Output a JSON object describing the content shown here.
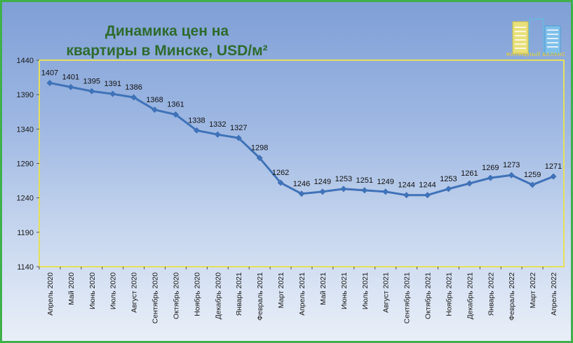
{
  "title": {
    "line1": "Динамика цен на",
    "line2": "квартиры в Минске, USD/м²"
  },
  "logo": {
    "text": "ЖИЛИЩНЫЙ БАЛАНС",
    "icon": "building-logo-icon"
  },
  "colors": {
    "series": "#3f72b8",
    "plot_border": "#e6e05a",
    "title": "#2e6b2e",
    "frame_border": "#3fb04a"
  },
  "chart_data": {
    "type": "line",
    "title": "Динамика цен на квартиры в Минске, USD/м²",
    "xlabel": "",
    "ylabel": "",
    "ylim": [
      1140,
      1440
    ],
    "yticks": [
      1140,
      1190,
      1240,
      1290,
      1340,
      1390,
      1440
    ],
    "grid": false,
    "legend": "none",
    "categories": [
      "Апрель 2020",
      "Май 2020",
      "Июнь 2020",
      "Июль 2020",
      "Август 2020",
      "Сентябрь 2020",
      "Октябрь 2020",
      "Ноябрь 2020",
      "Декабрь 2020",
      "Январь 2021",
      "Февраль 2021",
      "Март 2021",
      "Апрель 2021",
      "Май 2021",
      "Июнь 2021",
      "Июль 2021",
      "Август 2021",
      "Сентябрь 2021",
      "Октябрь 2021",
      "Ноябрь 2021",
      "Декабрь 2021",
      "Январь 2022",
      "Февраль 2022",
      "Март 2022",
      "Апрель 2022"
    ],
    "series": [
      {
        "values": [
          1407,
          1401,
          1395,
          1391,
          1386,
          1368,
          1361,
          1338,
          1332,
          1327,
          1298,
          1262,
          1246,
          1249,
          1253,
          1251,
          1249,
          1244,
          1244,
          1253,
          1261,
          1269,
          1273,
          1259,
          1271
        ]
      }
    ]
  }
}
